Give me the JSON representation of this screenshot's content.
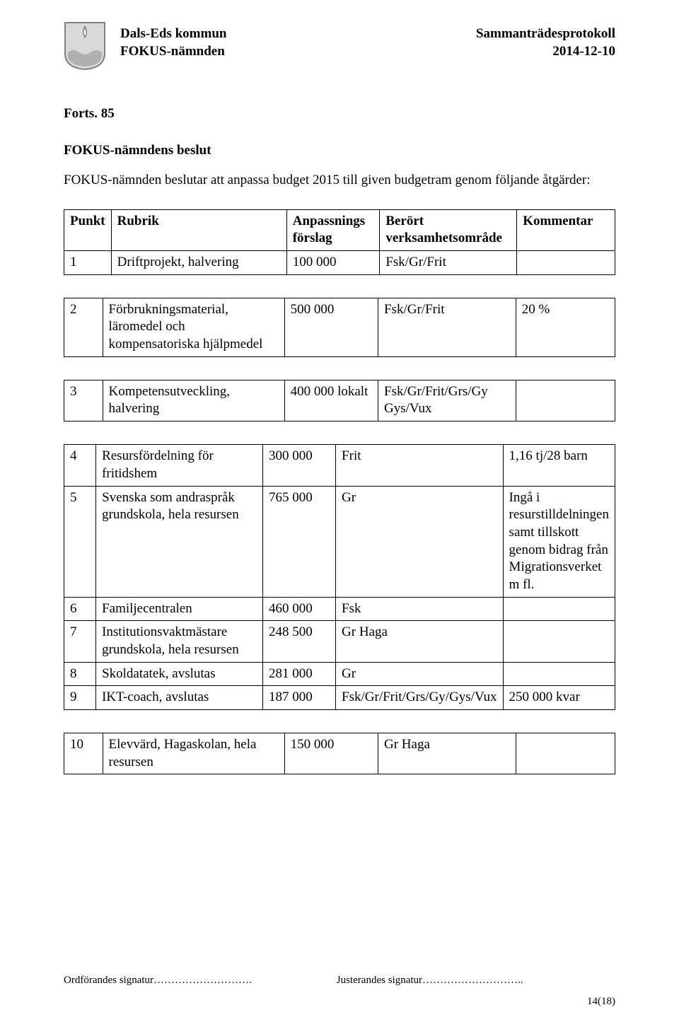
{
  "header": {
    "org": "Dals-Eds kommun",
    "committee": "FOKUS-nämnden",
    "doc_type": "Sammanträdesprotokoll",
    "date": "2014-12-10"
  },
  "logo": {
    "bg": "#d9d9d9",
    "border": "#808080",
    "water": "#b0b0b0",
    "flame_outer": "#808080",
    "flame_inner": "#ffffff"
  },
  "content": {
    "forts": "Forts. 85",
    "beslut_title": "FOKUS-nämndens beslut",
    "beslut_text": "FOKUS-nämnden beslutar att anpassa budget 2015 till given budgetram genom följande åtgärder:"
  },
  "table": {
    "columns": [
      "Punkt",
      "Rubrik",
      "Anpassnings förslag",
      "Berört verksamhetsområde",
      "Kommentar"
    ],
    "rows_a": [
      [
        "1",
        "Driftprojekt, halvering",
        "100 000",
        "Fsk/Gr/Frit",
        ""
      ]
    ],
    "rows_b": [
      [
        "2",
        "Förbrukningsmaterial, läromedel och kompensatoriska hjälpmedel",
        "500 000",
        "Fsk/Gr/Frit",
        "20 %"
      ]
    ],
    "rows_c": [
      [
        "3",
        "Kompetensutveckling, halvering",
        "400 000 lokalt",
        "Fsk/Gr/Frit/Grs/Gy Gys/Vux",
        ""
      ]
    ],
    "rows_d": [
      [
        "4",
        "Resursfördelning för fritidshem",
        "300 000",
        "Frit",
        "1,16 tj/28 barn"
      ],
      [
        "5",
        "Svenska som andraspråk grundskola, hela resursen",
        "765 000",
        "Gr",
        "Ingå i resurstilldelningen samt tillskott genom bidrag från Migrationsverket m fl."
      ],
      [
        "6",
        "Familjecentralen",
        "460 000",
        "Fsk",
        ""
      ],
      [
        "7",
        "Institutionsvaktmästare grundskola, hela resursen",
        "248 500",
        "Gr Haga",
        ""
      ],
      [
        "8",
        "Skoldatatek, avslutas",
        "281 000",
        "Gr",
        ""
      ],
      [
        "9",
        "IKT-coach, avslutas",
        "187 000",
        "Fsk/Gr/Frit/Grs/Gy/Gys/Vux",
        "250 000 kvar"
      ]
    ],
    "rows_e": [
      [
        "10",
        "Elevvärd, Hagaskolan, hela resursen",
        "150 000",
        "Gr Haga",
        ""
      ]
    ]
  },
  "footer": {
    "sig1": "Ordförandes signatur……………………….",
    "sig2": "Justerandes signatur………………………..",
    "page": "14(18)"
  }
}
